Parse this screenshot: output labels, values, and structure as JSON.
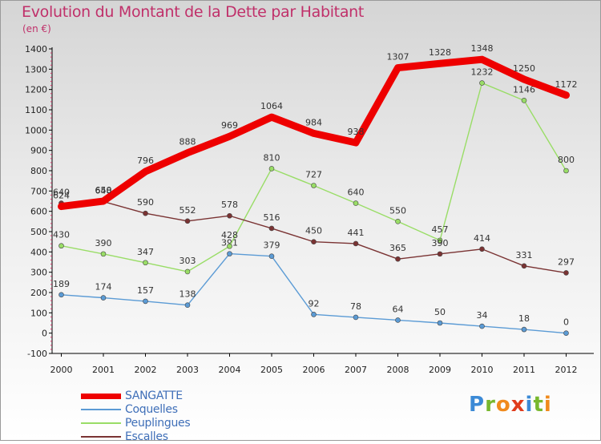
{
  "title": "Evolution du Montant de la Dette par Habitant",
  "unit": "(en €)",
  "logo": {
    "letters": [
      "P",
      "r",
      "o",
      "x",
      "i",
      "t",
      "i"
    ],
    "colors": [
      "#3c8ad6",
      "#78b82e",
      "#f08a1c",
      "#e03c1c",
      "#3c8ad6",
      "#78b82e",
      "#f08a1c"
    ]
  },
  "chart_data": {
    "type": "line",
    "x": [
      2000,
      2001,
      2002,
      2003,
      2004,
      2005,
      2006,
      2007,
      2008,
      2009,
      2010,
      2011,
      2012
    ],
    "ylim": [
      -100,
      1400
    ],
    "yticks": [
      -100,
      0,
      100,
      200,
      300,
      400,
      500,
      600,
      700,
      800,
      900,
      1000,
      1100,
      1200,
      1300,
      1400
    ],
    "grid": false,
    "legend_position": "bottom-left",
    "series": [
      {
        "name": "SANGATTE",
        "color": "#ee0000",
        "values": [
          624,
          650,
          796,
          888,
          969,
          1064,
          984,
          938,
          1307,
          1328,
          1348,
          1250,
          1172
        ]
      },
      {
        "name": "Coquelles",
        "color": "#5b9bd5",
        "values": [
          189,
          174,
          157,
          138,
          391,
          379,
          92,
          78,
          64,
          50,
          34,
          18,
          0
        ]
      },
      {
        "name": "Peuplingues",
        "color": "#99dd66",
        "values": [
          430,
          390,
          347,
          303,
          428,
          810,
          727,
          640,
          550,
          457,
          1232,
          1146,
          800
        ]
      },
      {
        "name": "Escalles",
        "color": "#7a3333",
        "values": [
          640,
          648,
          590,
          552,
          578,
          516,
          450,
          441,
          365,
          390,
          414,
          331,
          297
        ]
      }
    ]
  }
}
